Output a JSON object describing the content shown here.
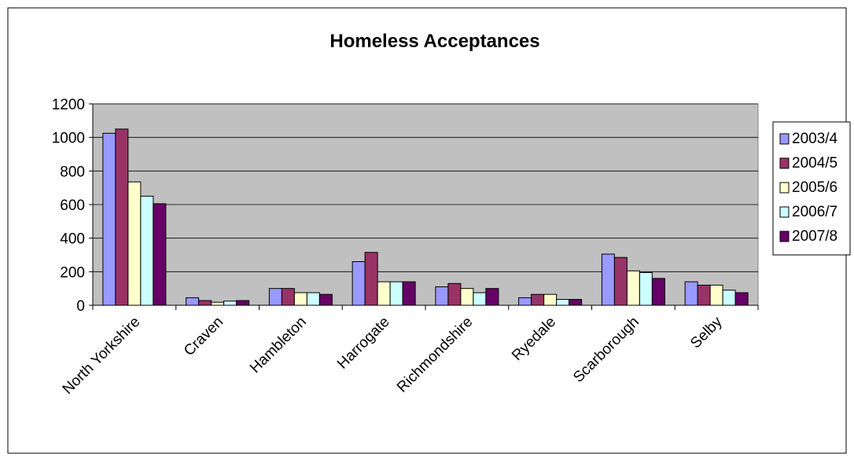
{
  "chart_data": {
    "type": "bar",
    "title": "Homeless Acceptances",
    "categories": [
      "North Yorkshire",
      "Craven",
      "Hambleton",
      "Harrogate",
      "Richmondshire",
      "Ryedale",
      "Scarborough",
      "Selby"
    ],
    "series": [
      {
        "name": "2003/4",
        "color": "#9999FF",
        "values": [
          1025,
          45,
          100,
          260,
          110,
          45,
          305,
          140
        ]
      },
      {
        "name": "2004/5",
        "color": "#993366",
        "values": [
          1050,
          28,
          100,
          315,
          130,
          65,
          285,
          120
        ]
      },
      {
        "name": "2005/6",
        "color": "#FFFFCC",
        "values": [
          735,
          18,
          75,
          140,
          100,
          65,
          205,
          120
        ]
      },
      {
        "name": "2006/7",
        "color": "#CCFFFF",
        "values": [
          650,
          25,
          75,
          140,
          75,
          35,
          195,
          90
        ]
      },
      {
        "name": "2007/8",
        "color": "#660066",
        "values": [
          605,
          28,
          65,
          140,
          100,
          35,
          160,
          75
        ]
      }
    ],
    "ylim": [
      0,
      1200
    ],
    "yticks": [
      0,
      200,
      400,
      600,
      800,
      1000,
      1200
    ],
    "grid": true,
    "plot_background": "#C0C0C0",
    "legend_position": "right"
  }
}
